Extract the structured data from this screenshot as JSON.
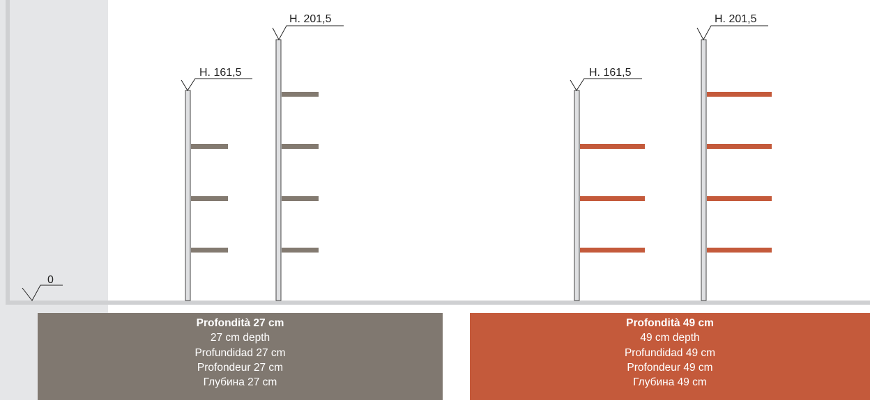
{
  "colors": {
    "gray_shelf": "#837a70",
    "red_shelf": "#c45a3b",
    "upright_fill": "#dfe0e2",
    "upright_stroke": "#444444",
    "caption_gray": "#807870",
    "caption_red": "#c45a3b"
  },
  "floor_label": "0",
  "groups": [
    {
      "id": "27",
      "shelf_color": "gray_shelf",
      "uprights": [
        {
          "height_label": "H. 161,5"
        },
        {
          "height_label": "H. 201,5"
        }
      ],
      "caption": {
        "lines": [
          "Profondità 27 cm",
          "27 cm depth",
          "Profundidad 27 cm",
          "Profondeur 27 cm",
          "Глубина 27 cm"
        ]
      }
    },
    {
      "id": "49",
      "shelf_color": "red_shelf",
      "uprights": [
        {
          "height_label": "H. 161,5"
        },
        {
          "height_label": "H. 201,5"
        }
      ],
      "caption": {
        "lines": [
          "Profondità 49 cm",
          "49 cm depth",
          "Profundidad 49 cm",
          "Profondeur 49 cm",
          "Глубина 49 cm"
        ]
      }
    }
  ]
}
